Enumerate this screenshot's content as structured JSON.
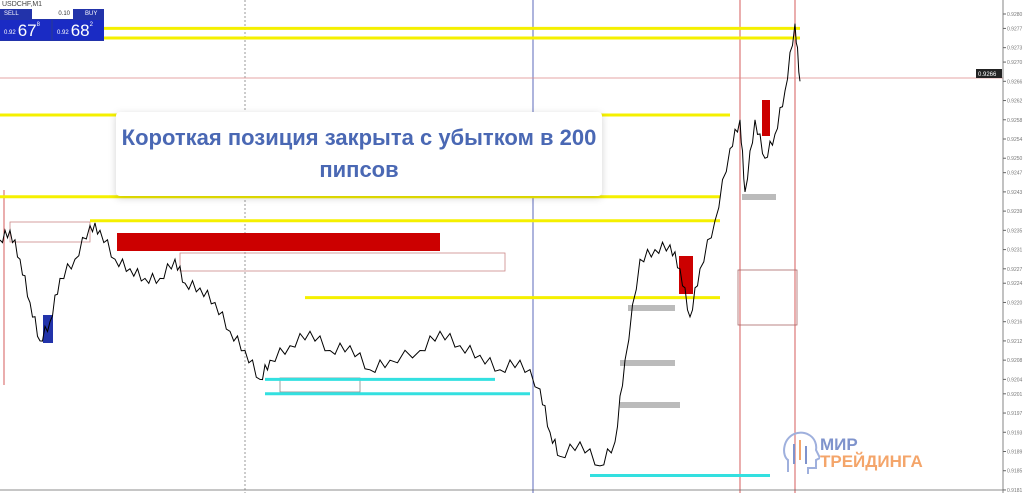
{
  "trade_panel": {
    "symbol_header": "USDCHF,M1",
    "sell_label": "SELL",
    "buy_label": "BUY",
    "lot": "0.10",
    "bid": {
      "prefix": "0.92",
      "big": "67",
      "sup": "8"
    },
    "ask": {
      "prefix": "0.92",
      "big": "68",
      "sup": "2"
    }
  },
  "callout": {
    "text": "Короткая позиция закрыта с убытком в 200 пипсов"
  },
  "logo": {
    "line1": "МИР",
    "line2": "ТРЕЙДИНГА"
  },
  "colors": {
    "price": "#000000",
    "level_yellow": "#f5f000",
    "level_cyan": "#33e0e0",
    "zone_red": "#cc0000",
    "vline_blue": "#3344aa",
    "vline_red": "#cc3333"
  },
  "chart_data": {
    "type": "line",
    "title": "",
    "ylim": [
      0.918,
      0.9281
    ],
    "y_ticks": [
      "0.9280",
      "0.9277",
      "0.9273",
      "0.9270",
      "0.9266",
      "0.9262",
      "0.9258",
      "0.9254",
      "0.9250",
      "0.9247",
      "0.9243",
      "0.9239",
      "0.9235",
      "0.9231",
      "0.9227",
      "0.9224",
      "0.9220",
      "0.9216",
      "0.9212",
      "0.9208",
      "0.9204",
      "0.9201",
      "0.9197",
      "0.9193",
      "0.9189",
      "0.9185",
      "0.9181"
    ],
    "current_price": "0.9266",
    "x": [
      0,
      2,
      4,
      6,
      8,
      10,
      12,
      15,
      18,
      20,
      23,
      26,
      29,
      32,
      35,
      37,
      40,
      43,
      46,
      49,
      52,
      54,
      58,
      62,
      66,
      70,
      74,
      78,
      84,
      88,
      92,
      96,
      100,
      104,
      108,
      110,
      112,
      116,
      120,
      123,
      125,
      128,
      131,
      134,
      136,
      138,
      140,
      143,
      146,
      148,
      149,
      151,
      153,
      155,
      157,
      159,
      160
    ],
    "values": [
      0.9233,
      0.9235,
      0.9229,
      0.922,
      0.9212,
      0.9216,
      0.9225,
      0.9229,
      0.9236,
      0.9235,
      0.9229,
      0.9227,
      0.9225,
      0.9225,
      0.9229,
      0.9224,
      0.9223,
      0.922,
      0.9214,
      0.921,
      0.9204,
      0.9208,
      0.9211,
      0.9214,
      0.921,
      0.9211,
      0.9206,
      0.9208,
      0.921,
      0.9214,
      0.9211,
      0.9209,
      0.9206,
      0.9208,
      0.9202,
      0.9193,
      0.9188,
      0.9191,
      0.9186,
      0.9191,
      0.9208,
      0.9229,
      0.9231,
      0.9232,
      0.9227,
      0.9217,
      0.9227,
      0.9237,
      0.9252,
      0.9258,
      0.9243,
      0.9258,
      0.925,
      0.9255,
      0.9264,
      0.9278,
      0.9266
    ],
    "yellow_levels": [
      0.9277,
      0.9275,
      0.9259,
      0.9242,
      0.9237,
      0.9221
    ],
    "cyan_levels": [
      0.9204,
      0.9201,
      0.9184
    ]
  }
}
